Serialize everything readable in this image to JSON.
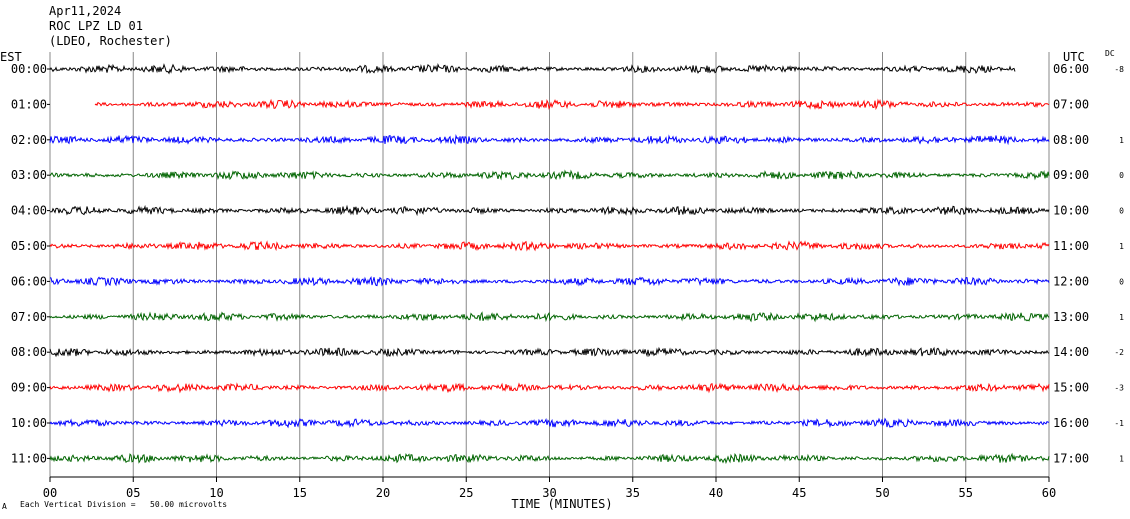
{
  "header": {
    "date": "Apr11,2024",
    "station": "ROC LPZ LD 01",
    "network": "(LDEO, Rochester)"
  },
  "left_axis_title": "EST",
  "right_axis_title": "UTC",
  "dc_title": "DC",
  "x_axis_title": "TIME (MINUTES)",
  "footer_note": "Each Vertical Division =   50.00 microvolts",
  "footer_mark": "A",
  "colors": [
    "#000000",
    "#ff0000",
    "#0000ff",
    "#006400"
  ],
  "chart_data": {
    "type": "line",
    "x_range": [
      0,
      60
    ],
    "x_ticks": [
      "00",
      "05",
      "10",
      "15",
      "20",
      "25",
      "30",
      "35",
      "40",
      "45",
      "50",
      "55",
      "60"
    ],
    "grid": true,
    "rows": [
      {
        "est": "00:00",
        "utc": "06:00",
        "dc": "-8",
        "start_min": 0.0,
        "end_min": 58.0
      },
      {
        "est": "01:00",
        "utc": "07:00",
        "dc": "",
        "start_min": 2.7,
        "end_min": 60.0
      },
      {
        "est": "02:00",
        "utc": "08:00",
        "dc": "1",
        "start_min": 0.0,
        "end_min": 60.0
      },
      {
        "est": "03:00",
        "utc": "09:00",
        "dc": "0",
        "start_min": 0.0,
        "end_min": 60.0
      },
      {
        "est": "04:00",
        "utc": "10:00",
        "dc": "0",
        "start_min": 0.0,
        "end_min": 60.0
      },
      {
        "est": "05:00",
        "utc": "11:00",
        "dc": "1",
        "start_min": 0.0,
        "end_min": 60.0
      },
      {
        "est": "06:00",
        "utc": "12:00",
        "dc": "0",
        "start_min": 0.0,
        "end_min": 60.0
      },
      {
        "est": "07:00",
        "utc": "13:00",
        "dc": "1",
        "start_min": 0.0,
        "end_min": 60.0
      },
      {
        "est": "08:00",
        "utc": "14:00",
        "dc": "-2",
        "start_min": 0.0,
        "end_min": 60.0
      },
      {
        "est": "09:00",
        "utc": "15:00",
        "dc": "-3",
        "start_min": 0.0,
        "end_min": 60.0
      },
      {
        "est": "10:00",
        "utc": "16:00",
        "dc": "-1",
        "start_min": 0.0,
        "end_min": 60.0
      },
      {
        "est": "11:00",
        "utc": "17:00",
        "dc": "1",
        "start_min": 0.0,
        "end_min": 60.0
      }
    ]
  }
}
